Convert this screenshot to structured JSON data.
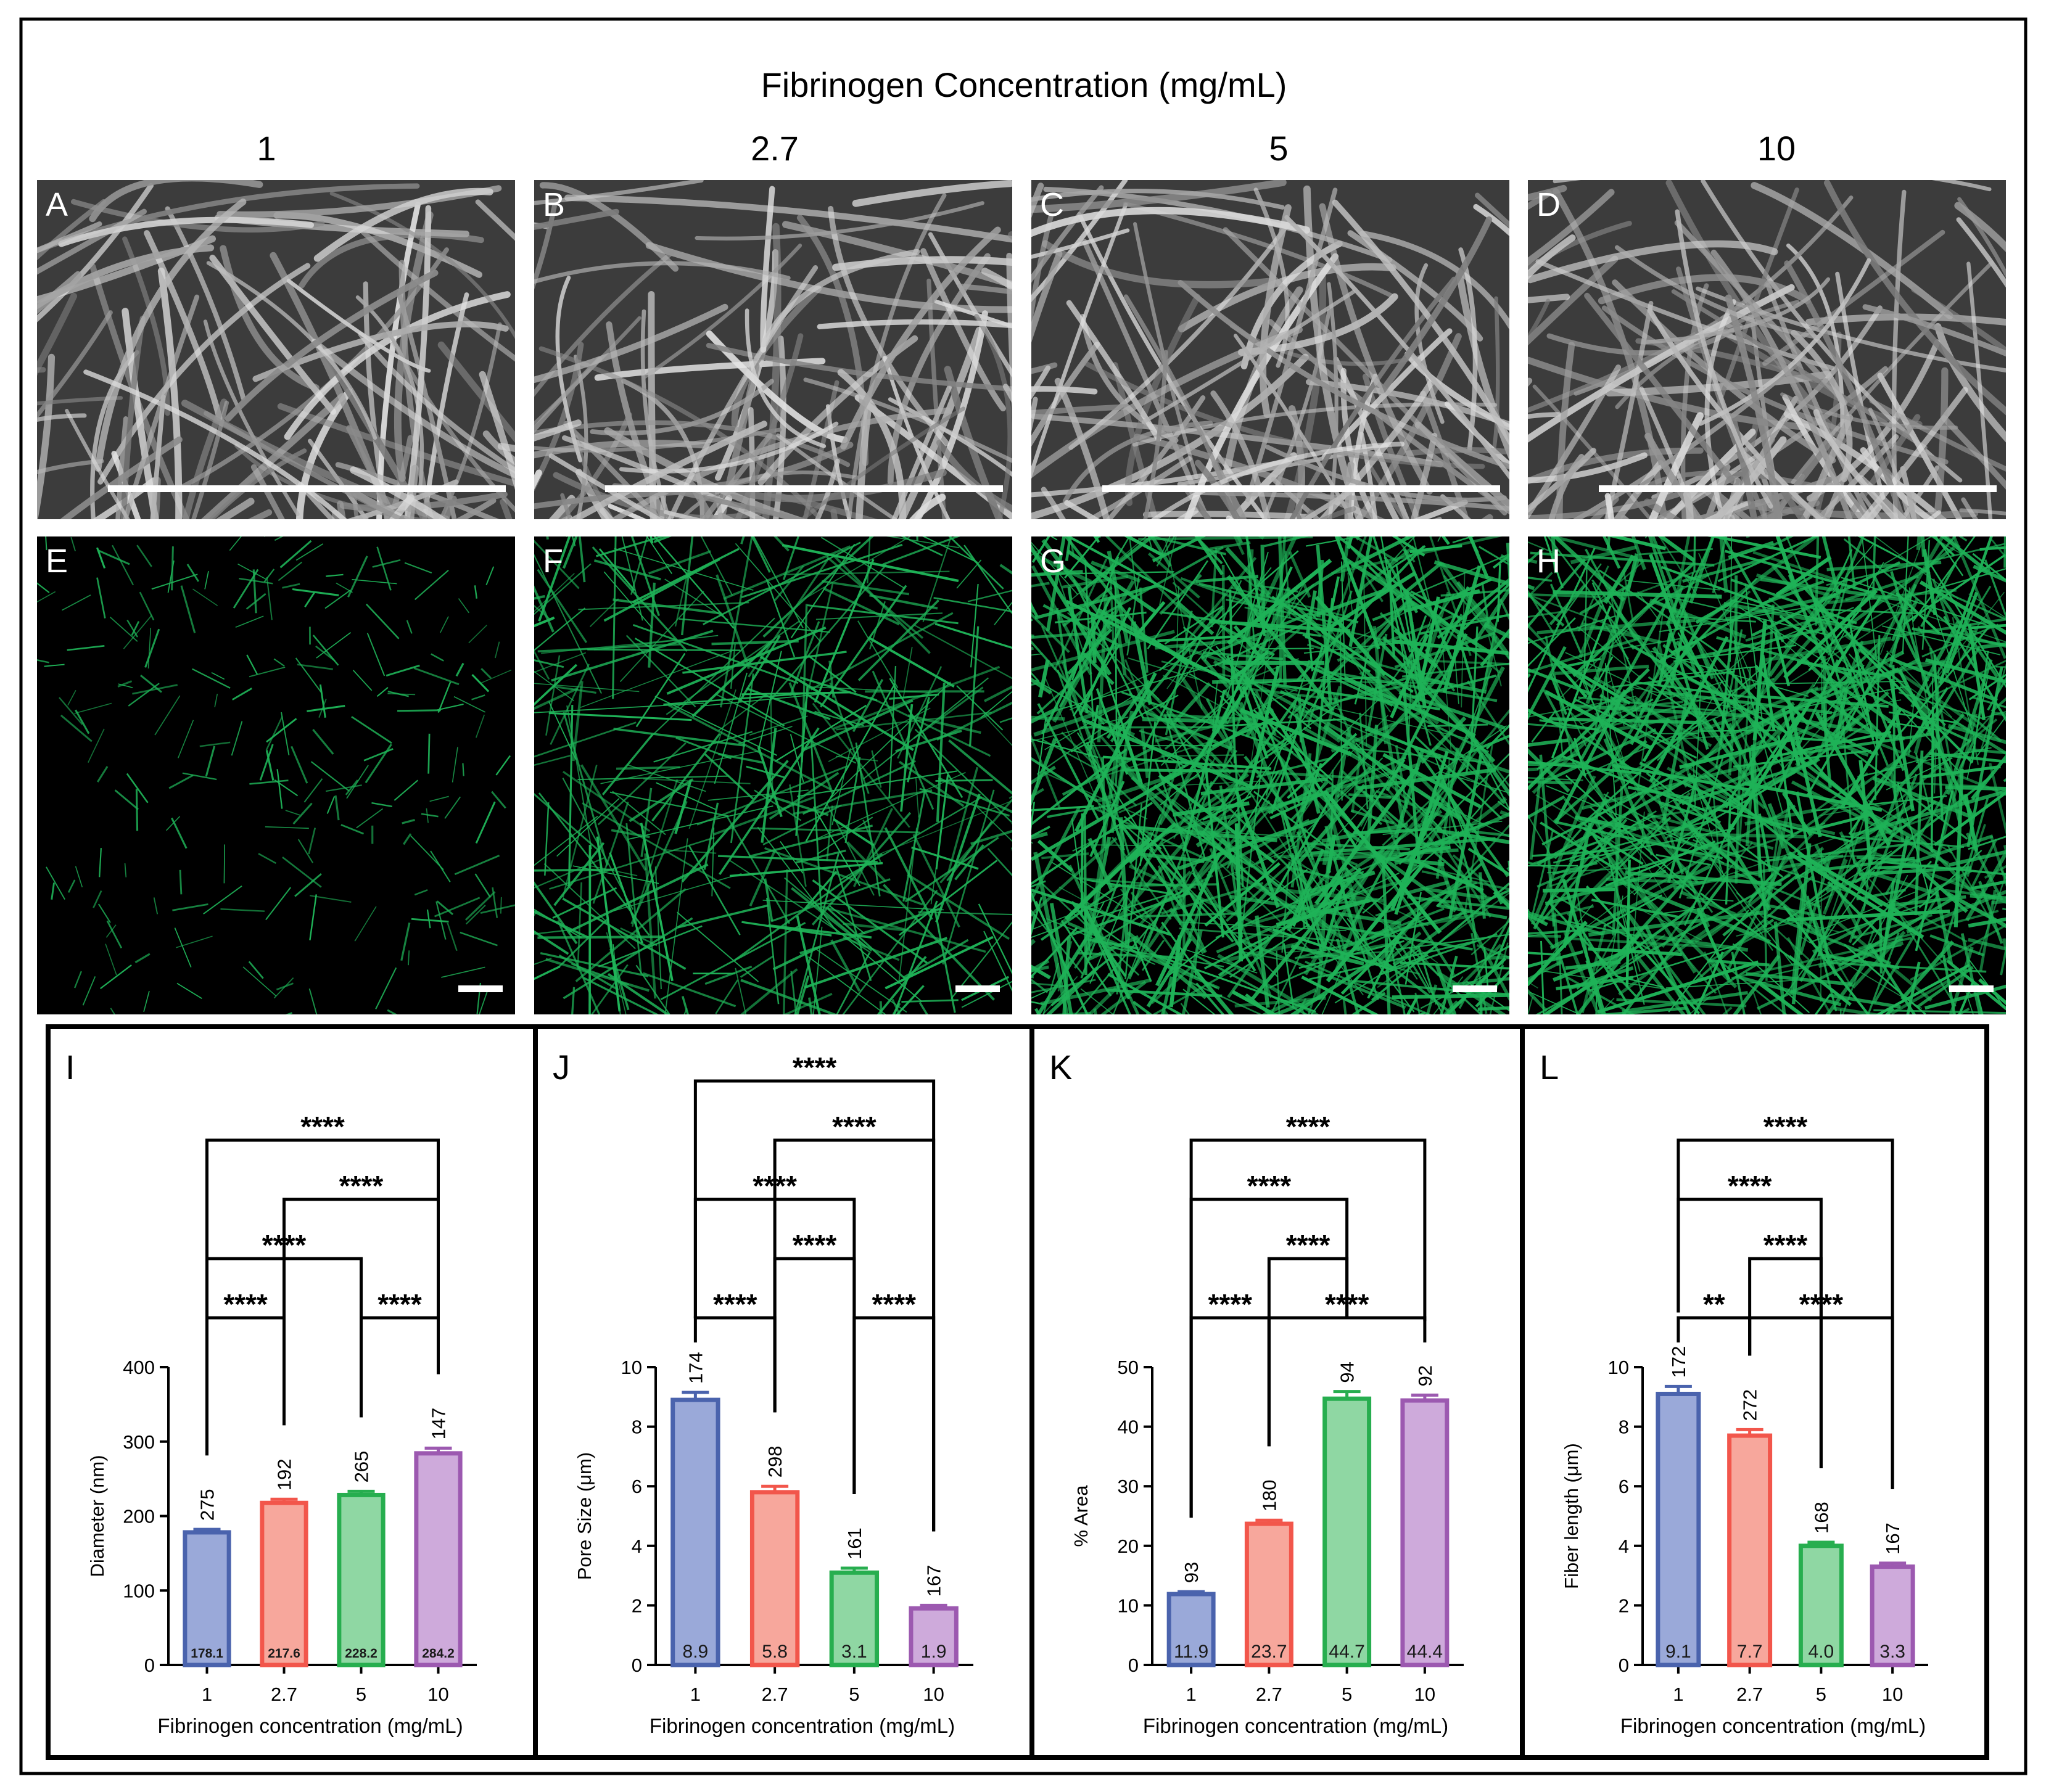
{
  "header": {
    "title": "Fibrinogen Concentration (mg/mL)",
    "columns": [
      "1",
      "2.7",
      "5",
      "10"
    ]
  },
  "colors": {
    "blue": "#4a63ad",
    "blue_fill": "#9aa9d9",
    "red": "#f2564b",
    "red_fill": "#f7a79c",
    "green": "#27ae4f",
    "green_fill": "#8fd7a3",
    "purple": "#9c59b0",
    "purple_fill": "#ceaadb",
    "fluor_green": "#1fb358"
  },
  "image_panels": [
    {
      "label": "A",
      "type": "sem",
      "density": 0.45
    },
    {
      "label": "B",
      "type": "sem",
      "density": 0.55
    },
    {
      "label": "C",
      "type": "sem",
      "density": 0.6
    },
    {
      "label": "D",
      "type": "sem",
      "density": 0.85
    },
    {
      "label": "E",
      "type": "fluorescence",
      "density": 0.18
    },
    {
      "label": "F",
      "type": "fluorescence",
      "density": 0.42
    },
    {
      "label": "G",
      "type": "fluorescence",
      "density": 1.0
    },
    {
      "label": "H",
      "type": "fluorescence",
      "density": 0.95
    }
  ],
  "chart_data": [
    {
      "label": "I",
      "type": "bar",
      "categories": [
        "1",
        "2.7",
        "5",
        "10"
      ],
      "values": [
        178.1,
        217.6,
        228.2,
        284.2
      ],
      "errors": [
        4,
        5,
        5,
        7
      ],
      "value_labels": [
        "178.1",
        "217.6",
        "228.2",
        "284.2"
      ],
      "n_labels": [
        "275",
        "192",
        "265",
        "147"
      ],
      "ylabel": "Diameter (nm)",
      "xlabel": "Fibrinogen concentration (mg/mL)",
      "ylim": [
        0,
        400
      ],
      "yticks": [
        0,
        100,
        200,
        300,
        400
      ],
      "significance": [
        {
          "from": 0,
          "to": 1,
          "label": "****",
          "level": 0
        },
        {
          "from": 2,
          "to": 3,
          "label": "****",
          "level": 0
        },
        {
          "from": 0,
          "to": 2,
          "label": "****",
          "level": 1
        },
        {
          "from": 1,
          "to": 3,
          "label": "****",
          "level": 2
        },
        {
          "from": 0,
          "to": 3,
          "label": "****",
          "level": 3
        }
      ]
    },
    {
      "label": "J",
      "type": "bar",
      "categories": [
        "1",
        "2.7",
        "5",
        "10"
      ],
      "values": [
        8.9,
        5.8,
        3.1,
        1.9
      ],
      "errors": [
        0.25,
        0.2,
        0.15,
        0.1
      ],
      "value_labels": [
        "8.9",
        "5.8",
        "3.1",
        "1.9"
      ],
      "n_labels": [
        "174",
        "298",
        "161",
        "167"
      ],
      "ylabel": "Pore Size (μm)",
      "xlabel": "Fibrinogen concentration (mg/mL)",
      "ylim": [
        0,
        10
      ],
      "yticks": [
        0,
        2,
        4,
        6,
        8,
        10
      ],
      "significance": [
        {
          "from": 0,
          "to": 1,
          "label": "****",
          "level": 0
        },
        {
          "from": 2,
          "to": 3,
          "label": "****",
          "level": 0
        },
        {
          "from": 1,
          "to": 2,
          "label": "****",
          "level": 1
        },
        {
          "from": 0,
          "to": 2,
          "label": "****",
          "level": 2
        },
        {
          "from": 1,
          "to": 3,
          "label": "****",
          "level": 3
        },
        {
          "from": 0,
          "to": 3,
          "label": "****",
          "level": 4
        }
      ]
    },
    {
      "label": "K",
      "type": "bar",
      "categories": [
        "1",
        "2.7",
        "5",
        "10"
      ],
      "values": [
        11.9,
        23.7,
        44.7,
        44.4
      ],
      "errors": [
        0.4,
        0.6,
        1.2,
        0.9
      ],
      "value_labels": [
        "11.9",
        "23.7",
        "44.7",
        "44.4"
      ],
      "n_labels": [
        "93",
        "180",
        "94",
        "92"
      ],
      "ylabel": "% Area",
      "xlabel": "Fibrinogen concentration (mg/mL)",
      "ylim": [
        0,
        50
      ],
      "yticks": [
        0,
        10,
        20,
        30,
        40,
        50
      ],
      "significance": [
        {
          "from": 0,
          "to": 1,
          "label": "****",
          "level": 0
        },
        {
          "from": 1,
          "to": 3,
          "label": "****",
          "level": 0
        },
        {
          "from": 1,
          "to": 2,
          "label": "****",
          "level": 1
        },
        {
          "from": 0,
          "to": 2,
          "label": "****",
          "level": 2
        },
        {
          "from": 0,
          "to": 3,
          "label": "****",
          "level": 3
        }
      ]
    },
    {
      "label": "L",
      "type": "bar",
      "categories": [
        "1",
        "2.7",
        "5",
        "10"
      ],
      "values": [
        9.1,
        7.7,
        4.0,
        3.3
      ],
      "errors": [
        0.25,
        0.2,
        0.12,
        0.12
      ],
      "value_labels": [
        "9.1",
        "7.7",
        "4.0",
        "3.3"
      ],
      "n_labels": [
        "172",
        "272",
        "168",
        "167"
      ],
      "ylabel": "Fiber length (μm)",
      "xlabel": "Fibrinogen concentration (mg/mL)",
      "ylim": [
        0,
        10
      ],
      "yticks": [
        0,
        2,
        4,
        6,
        8,
        10
      ],
      "significance": [
        {
          "from": 0,
          "to": 1,
          "label": "**",
          "level": 0
        },
        {
          "from": 1,
          "to": 3,
          "label": "****",
          "level": 0
        },
        {
          "from": 1,
          "to": 2,
          "label": "****",
          "level": 1
        },
        {
          "from": 0,
          "to": 2,
          "label": "****",
          "level": 2
        },
        {
          "from": 0,
          "to": 3,
          "label": "****",
          "level": 3
        }
      ]
    }
  ]
}
